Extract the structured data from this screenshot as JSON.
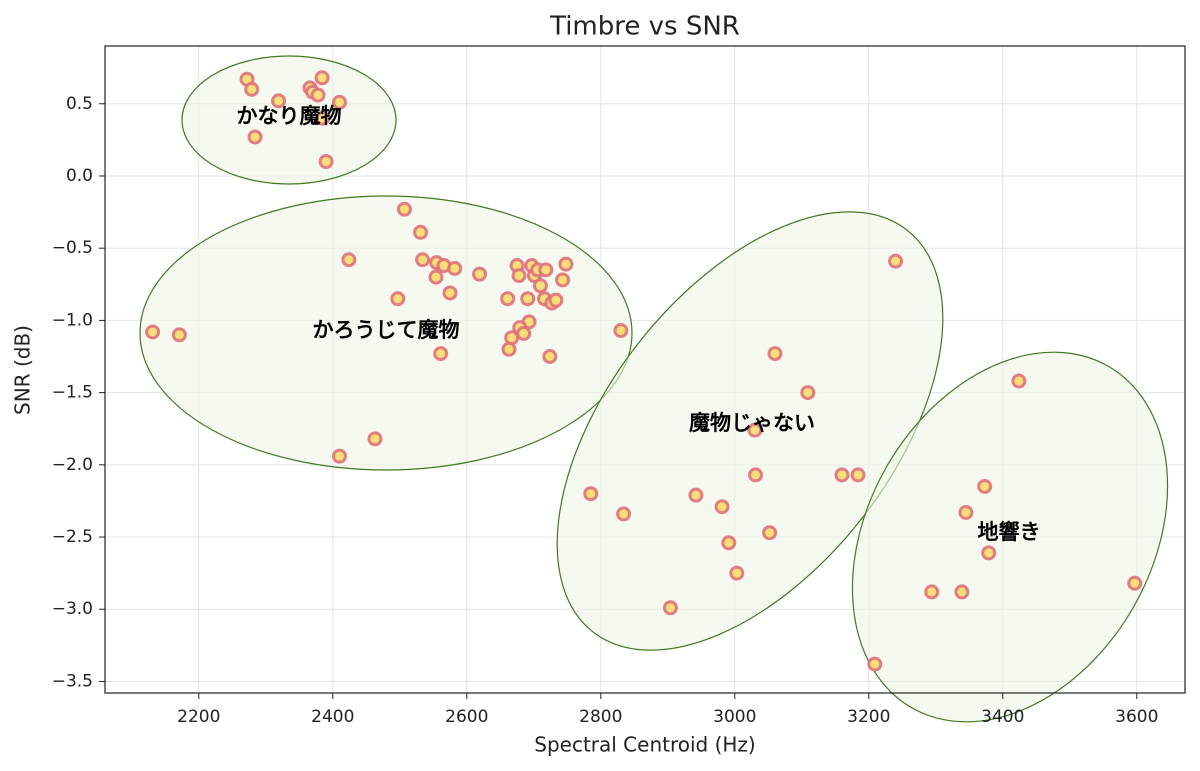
{
  "chart_data": {
    "type": "scatter",
    "title": "Timbre vs SNR",
    "xlabel": "Spectral Centroid (Hz)",
    "ylabel": "SNR (dB)",
    "x": [
      2272,
      2279,
      2319,
      2284,
      2366,
      2370,
      2384,
      2378,
      2385,
      2410,
      2390,
      2131,
      2171,
      2424,
      2410,
      2463,
      2507,
      2497,
      2531,
      2534,
      2555,
      2554,
      2566,
      2575,
      2582,
      2561,
      2619,
      2661,
      2675,
      2678,
      2691,
      2697,
      2701,
      2706,
      2718,
      2710,
      2716,
      2727,
      2733,
      2743,
      2748,
      2693,
      2679,
      2685,
      2667,
      2663,
      2724,
      2830,
      2785,
      2834,
      2904,
      2942,
      2981,
      2991,
      3003,
      3030,
      3031,
      3052,
      3060,
      3109,
      3160,
      3184,
      3240,
      3209,
      3294,
      3339,
      3345,
      3373,
      3379,
      3424,
      3597
    ],
    "values": [
      0.67,
      0.6,
      0.52,
      0.27,
      0.61,
      0.58,
      0.68,
      0.56,
      0.4,
      0.51,
      0.1,
      -1.08,
      -1.1,
      -0.58,
      -1.94,
      -1.82,
      -0.23,
      -0.85,
      -0.39,
      -0.58,
      -0.6,
      -0.7,
      -0.62,
      -0.81,
      -0.64,
      -1.23,
      -0.68,
      -0.85,
      -0.62,
      -0.69,
      -0.85,
      -0.62,
      -0.69,
      -0.65,
      -0.65,
      -0.76,
      -0.85,
      -0.88,
      -0.86,
      -0.72,
      -0.61,
      -1.01,
      -1.05,
      -1.09,
      -1.12,
      -1.2,
      -1.25,
      -1.07,
      -2.2,
      -2.34,
      -2.99,
      -2.21,
      -2.29,
      -2.54,
      -2.75,
      -1.76,
      -2.07,
      -2.47,
      -1.23,
      -1.5,
      -2.07,
      -2.07,
      -0.59,
      -3.38,
      -2.88,
      -2.88,
      -2.33,
      -2.15,
      -2.61,
      -1.42,
      -2.82
    ],
    "color": "#f7df78",
    "edgecolor": "#e0707c",
    "xlim": [
      2060,
      3672
    ],
    "ylim": [
      -3.58,
      0.9
    ],
    "xticks": [
      2200,
      2400,
      2600,
      2800,
      3000,
      3200,
      3400,
      3600
    ],
    "yticks": [
      0.5,
      {
        "value": 0,
        "label": "0.0"
      },
      {
        "value": -0.5,
        "label": "−0.5"
      },
      {
        "value": -1,
        "label": "−1.0"
      },
      {
        "value": -1.5,
        "label": "−1.5"
      },
      {
        "value": -2,
        "label": "−2.0"
      },
      {
        "value": -2.5,
        "label": "−2.5"
      },
      {
        "value": -3,
        "label": "−3.0"
      },
      {
        "value": -3.5,
        "label": "−3.5"
      }
    ],
    "grid": true,
    "annotations": [
      "かなり魔物",
      "かろうじて魔物",
      "魔物じゃない",
      "地響き"
    ]
  }
}
